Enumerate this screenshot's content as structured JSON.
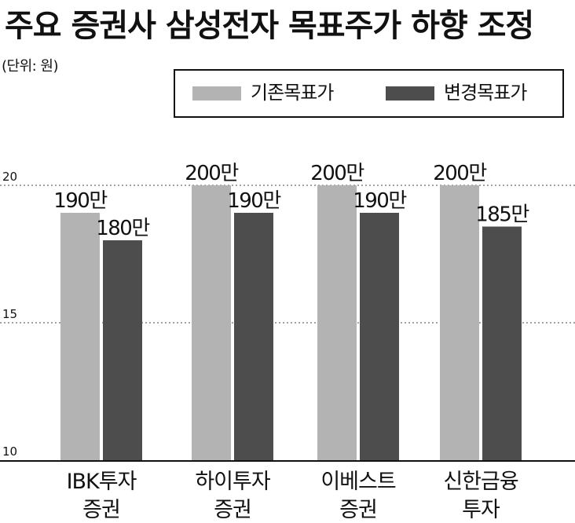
{
  "title": "주요 증권사 삼성전자 목표주가 하향 조정",
  "unit_label": "(단위: 원)",
  "colors": {
    "series_prev": "#b3b3b3",
    "series_new": "#4d4d4d",
    "grid": "#444444",
    "axis": "#111111"
  },
  "chart_data": {
    "type": "bar",
    "title": "주요 증권사 삼성전자 목표주가 하향 조정",
    "ylabel": "(단위: 원)",
    "xlabel": "",
    "ylim": [
      10,
      20
    ],
    "yticks": [
      "10",
      "15",
      "20"
    ],
    "grid": "dotted horizontal at 15 and 20",
    "legend_position": "top-right",
    "categories": [
      [
        "IBK투자",
        "증권"
      ],
      [
        "하이투자",
        "증권"
      ],
      [
        "이베스트",
        "증권"
      ],
      [
        "신한금융",
        "투자"
      ]
    ],
    "series": [
      {
        "name": "기존목표가",
        "values": [
          19,
          20,
          20,
          20
        ],
        "data_labels": [
          "190만",
          "200만",
          "200만",
          "200만"
        ]
      },
      {
        "name": "변경목표가",
        "values": [
          18,
          19,
          19,
          18.5
        ],
        "data_labels": [
          "180만",
          "190만",
          "190만",
          "185만"
        ]
      }
    ]
  }
}
